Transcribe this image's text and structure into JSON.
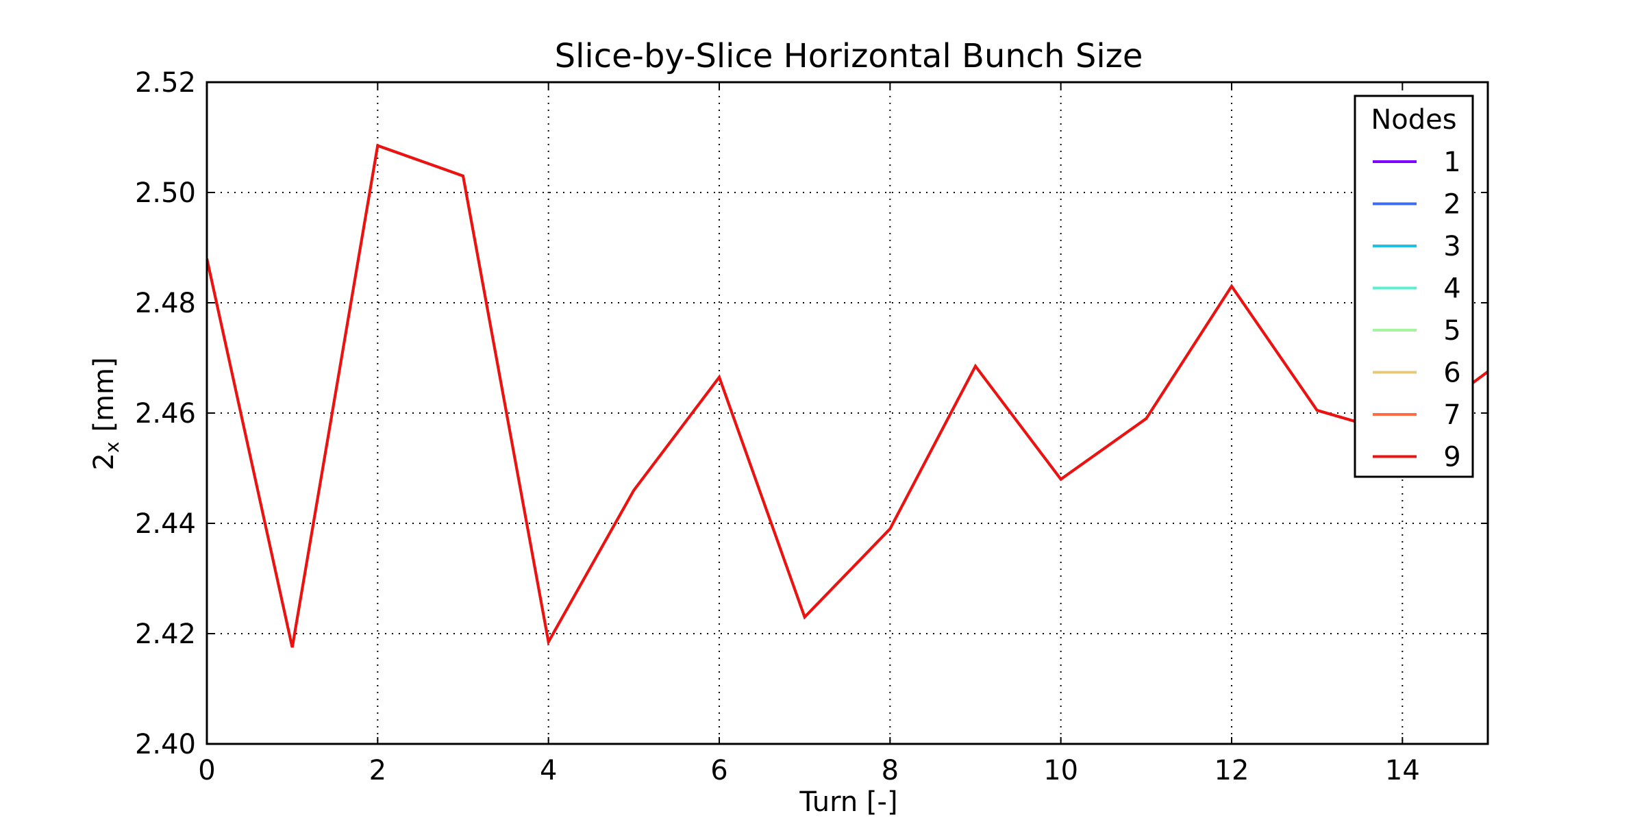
{
  "chart_data": {
    "type": "line",
    "title": "Slice-by-Slice Horizontal Bunch Size",
    "xlabel": "Turn [-]",
    "ylabel": "2x [mm]",
    "ylabel_main": "2",
    "ylabel_sub": "x",
    "ylabel_unit": "[mm]",
    "xlim": [
      0,
      15
    ],
    "ylim": [
      2.4,
      2.52
    ],
    "xticks": [
      0,
      2,
      4,
      6,
      8,
      10,
      12,
      14
    ],
    "xtick_labels": [
      "0",
      "2",
      "4",
      "6",
      "8",
      "10",
      "12",
      "14"
    ],
    "yticks": [
      2.4,
      2.42,
      2.44,
      2.46,
      2.48,
      2.5,
      2.52
    ],
    "ytick_labels": [
      "2.40",
      "2.42",
      "2.44",
      "2.46",
      "2.48",
      "2.50",
      "2.52"
    ],
    "grid": true,
    "legend": {
      "title": "Nodes",
      "placement": "top-right"
    },
    "x": [
      0,
      1,
      2,
      3,
      4,
      5,
      6,
      7,
      8,
      9,
      10,
      11,
      12,
      13,
      14,
      15
    ],
    "series": [
      {
        "name": "1",
        "color": "#8000ff",
        "values": [
          2.488,
          2.4175,
          2.5085,
          2.503,
          2.4185,
          2.446,
          2.4665,
          2.423,
          2.439,
          2.4685,
          2.448,
          2.459,
          2.483,
          2.4605,
          2.456,
          2.4675
        ]
      },
      {
        "name": "2",
        "color": "#3d6cf0",
        "values": [
          2.488,
          2.4175,
          2.5085,
          2.503,
          2.4185,
          2.446,
          2.4665,
          2.423,
          2.439,
          2.4685,
          2.448,
          2.459,
          2.483,
          2.4605,
          2.456,
          2.4675
        ]
      },
      {
        "name": "3",
        "color": "#1ec0e3",
        "values": [
          2.488,
          2.4175,
          2.5085,
          2.503,
          2.4185,
          2.446,
          2.4665,
          2.423,
          2.439,
          2.4685,
          2.448,
          2.459,
          2.483,
          2.4605,
          2.456,
          2.4675
        ]
      },
      {
        "name": "4",
        "color": "#59f0d0",
        "values": [
          2.488,
          2.4175,
          2.5085,
          2.503,
          2.4185,
          2.446,
          2.4665,
          2.423,
          2.439,
          2.4685,
          2.448,
          2.459,
          2.483,
          2.4605,
          2.456,
          2.4675
        ]
      },
      {
        "name": "5",
        "color": "#a4f4a0",
        "values": [
          2.488,
          2.4175,
          2.5085,
          2.503,
          2.4185,
          2.446,
          2.4665,
          2.423,
          2.439,
          2.4685,
          2.448,
          2.459,
          2.483,
          2.4605,
          2.456,
          2.4675
        ]
      },
      {
        "name": "6",
        "color": "#e6c87a",
        "values": [
          2.488,
          2.4175,
          2.5085,
          2.503,
          2.4185,
          2.446,
          2.4665,
          2.423,
          2.439,
          2.4685,
          2.448,
          2.459,
          2.483,
          2.4605,
          2.456,
          2.4675
        ]
      },
      {
        "name": "7",
        "color": "#ff6b45",
        "values": [
          2.488,
          2.4175,
          2.5085,
          2.503,
          2.4185,
          2.446,
          2.4665,
          2.423,
          2.439,
          2.4685,
          2.448,
          2.459,
          2.483,
          2.4605,
          2.456,
          2.4675
        ]
      },
      {
        "name": "9",
        "color": "#ee1111",
        "values": [
          2.488,
          2.4175,
          2.5085,
          2.503,
          2.4185,
          2.446,
          2.4665,
          2.423,
          2.439,
          2.4685,
          2.448,
          2.459,
          2.483,
          2.4605,
          2.456,
          2.4675
        ]
      }
    ]
  }
}
